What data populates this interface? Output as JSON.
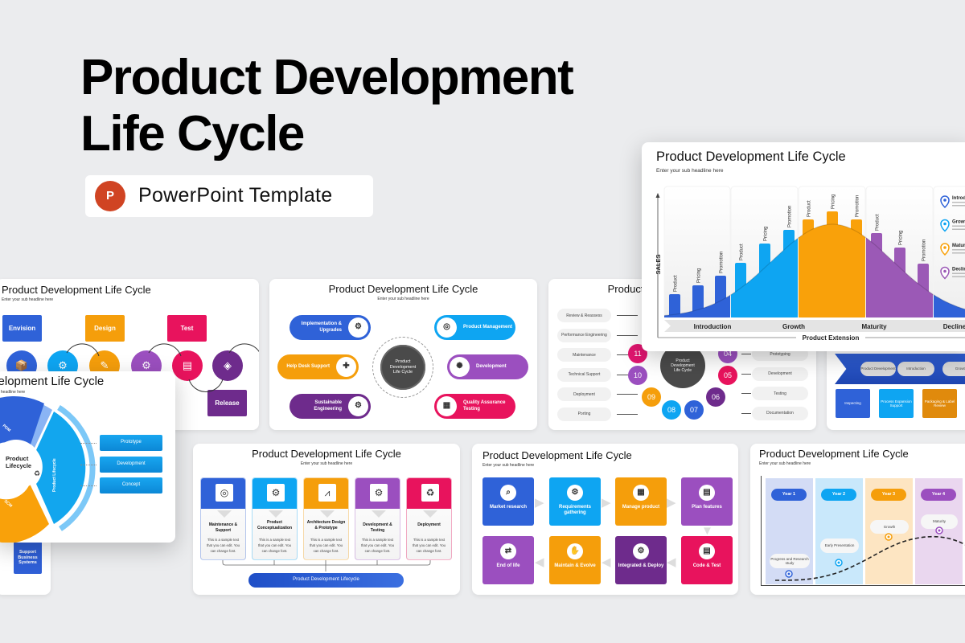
{
  "hero": {
    "title_line1": "Product Development",
    "title_line2": "Life Cycle",
    "badge_label": "PowerPoint Template",
    "badge_icon": "powerpoint-icon",
    "badge_icon_letter": "P"
  },
  "slide_title": "Product Development Life Cycle",
  "slide_subtitle": "Enter your sub headline here",
  "colors": {
    "blue": "#2f62d8",
    "light_blue": "#0ea5f2",
    "orange": "#f59e0b",
    "purple": "#9b4fbf",
    "dark_purple": "#6e2b8c",
    "pink": "#e8135d",
    "powerpoint": "#d04423",
    "background": "#ebecee"
  },
  "phase_slide": {
    "boxes": [
      "Envision",
      "Design",
      "Test",
      "Release"
    ]
  },
  "hub_slide": {
    "center": "Product Development Life Cycle",
    "items": [
      {
        "label": "Implementation & Upgrades",
        "icon": "factory-icon"
      },
      {
        "label": "Help Desk Support",
        "icon": "support-icon"
      },
      {
        "label": "Sustainable Engineering",
        "icon": "gears-icon"
      },
      {
        "label": "Product Management",
        "icon": "management-icon"
      },
      {
        "label": "Development",
        "icon": "development-icon"
      },
      {
        "label": "Quality Assurance Testing",
        "icon": "qr-check-icon"
      }
    ]
  },
  "numbered_slide": {
    "center": "Product Development Life Cycle",
    "left": [
      "Review & Reassess",
      "Performance Engineering",
      "Maintenance",
      "Technical Support",
      "Deployment",
      "Porting"
    ],
    "right": [
      "Prototyping",
      "Development",
      "Testing",
      "Documentation"
    ],
    "numbers": [
      "11",
      "10",
      "09",
      "08",
      "07",
      "06",
      "05",
      "04"
    ]
  },
  "flow_slide": {
    "stages": [
      "Product Development",
      "Introduction",
      "Growth"
    ],
    "boxes": [
      "Inspecting",
      "Process Expansion Support",
      "Packaging & Label Review"
    ]
  },
  "cycle_slide": {
    "center": "Product Lifecycle",
    "segments": [
      "PDM",
      "Product Lifecycle",
      "SCM"
    ],
    "boxes": [
      "Prototype",
      "Development",
      "Concept"
    ]
  },
  "side_slide": {
    "box": "Support Business Systems"
  },
  "columns_slide": {
    "columns": [
      {
        "title": "Maintenance & Support",
        "text": "This is a sample text that you can edit. You can change font."
      },
      {
        "title": "Product Conceptualization",
        "text": "This is a sample text that you can edit. You can change font."
      },
      {
        "title": "Architecture Design & Prototype",
        "text": "This is a sample text that you can edit. You can change font."
      },
      {
        "title": "Development & Testing",
        "text": "This is a sample text that you can edit. You can change font."
      },
      {
        "title": "Deployment",
        "text": "This is a sample text that you can edit. You can change font."
      }
    ],
    "footer": "Product Development Lifecycle"
  },
  "grid_slide": {
    "tiles": [
      "Market research",
      "Requirements gathering",
      "Manage product",
      "Plan features",
      "End of life",
      "Maintain & Evolve",
      "Integrated & Deploy",
      "Code & Test"
    ]
  },
  "timeline_slide": {
    "years": [
      "Year 1",
      "Year 2",
      "Year 3",
      "Year 4"
    ],
    "milestones": [
      "Progress and Research study",
      "Early Presentation",
      "Growth",
      "Maturity"
    ]
  },
  "chart_slide": {
    "y_label": "SALES",
    "x_label": "Product Extension",
    "phases": [
      "Introduction",
      "Growth",
      "Maturity",
      "Decline"
    ],
    "bar_labels": [
      "Product",
      "Pricing",
      "Promotion"
    ],
    "legend": [
      "Introduction",
      "Growth",
      "Maturity",
      "Decline"
    ]
  }
}
